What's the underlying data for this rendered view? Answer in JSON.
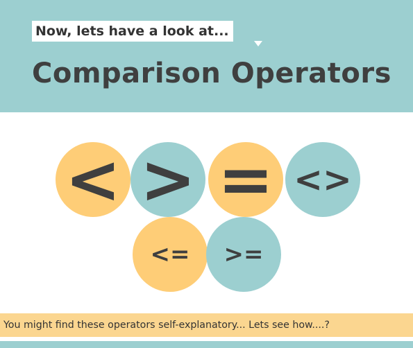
{
  "header": {
    "intro": "Now, lets have a look at...",
    "title": "Comparison Operators"
  },
  "operators": {
    "row1": [
      "<",
      ">",
      "=",
      "<>"
    ],
    "row2": [
      "<=",
      ">="
    ]
  },
  "banner": {
    "text": "You might find these operators self-explanatory... Lets see how....?"
  },
  "colors": {
    "teal": "#9ccfd0",
    "orange": "#fecd77",
    "banner": "#fbd690",
    "text": "#3f3f3f"
  }
}
